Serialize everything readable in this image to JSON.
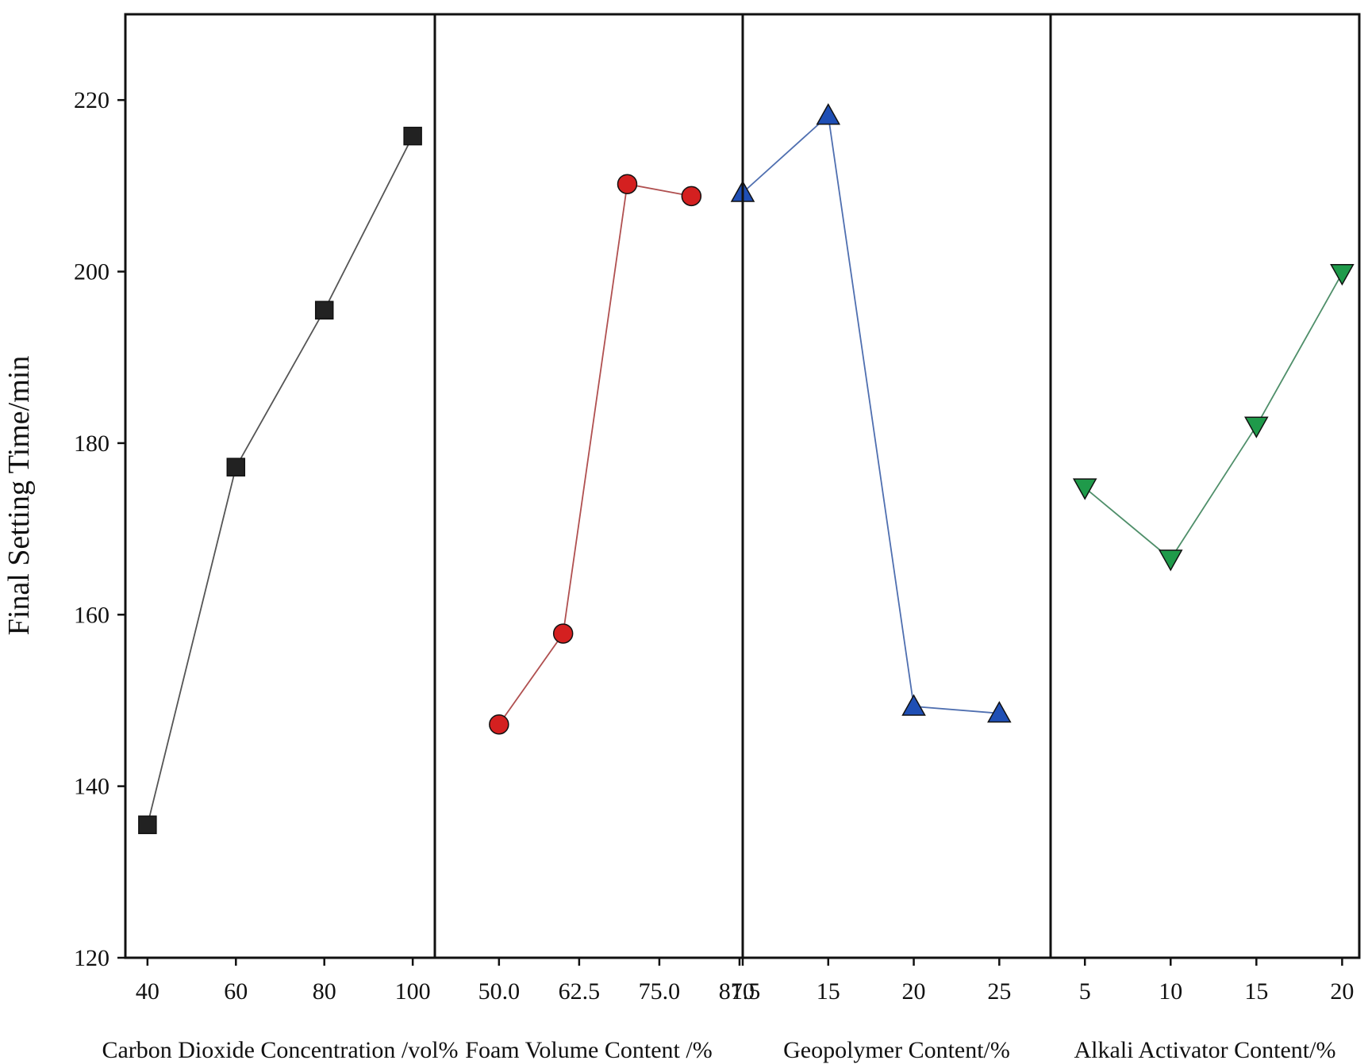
{
  "chart_data": {
    "type": "line",
    "ylabel": "Final Setting Time/min",
    "ylim": [
      120,
      230
    ],
    "yticks": [
      120,
      140,
      160,
      180,
      200,
      220
    ],
    "ytick_labels": [
      "120",
      "140",
      "160",
      "180",
      "200",
      "220"
    ],
    "grid": false,
    "panels": [
      {
        "xlabel": "Carbon Dioxide Concentration /vol%",
        "xlim": [
          35,
          105
        ],
        "xticks": [
          40,
          60,
          80,
          100
        ],
        "xtick_labels": [
          "40",
          "60",
          "80",
          "100"
        ],
        "color": "#222222",
        "line_color": "#555555",
        "marker": "square",
        "x": [
          40,
          60,
          80,
          100
        ],
        "values": [
          135.5,
          177.2,
          195.5,
          215.8
        ]
      },
      {
        "xlabel": "Foam Volume Content /%",
        "xlim": [
          40,
          88
        ],
        "xticks": [
          50.0,
          62.5,
          75.0,
          87.5
        ],
        "xtick_labels": [
          "50.0",
          "62.5",
          "75.0",
          "87.5"
        ],
        "color": "#d42020",
        "line_color": "#b05050",
        "marker": "circle",
        "x": [
          50,
          60,
          70,
          80
        ],
        "values": [
          147.2,
          157.8,
          210.2,
          208.8
        ]
      },
      {
        "xlabel": "Geopolymer Content/%",
        "xlim": [
          10,
          28
        ],
        "xticks": [
          10,
          15,
          20,
          25
        ],
        "xtick_labels": [
          "10",
          "15",
          "20",
          "25"
        ],
        "color": "#1f4fb5",
        "line_color": "#4f6fb0",
        "marker": "triangle-up",
        "x": [
          10,
          15,
          20,
          25
        ],
        "values": [
          209.2,
          218.2,
          149.3,
          148.5
        ]
      },
      {
        "xlabel": "Alkali Activator Content/%",
        "xlim": [
          3,
          21
        ],
        "xticks": [
          5,
          10,
          15,
          20
        ],
        "xtick_labels": [
          "5",
          "10",
          "15",
          "20"
        ],
        "color": "#1f9a4a",
        "line_color": "#4f8f6a",
        "marker": "triangle-down",
        "x": [
          5,
          10,
          15,
          20
        ],
        "values": [
          174.8,
          166.5,
          182.0,
          199.8
        ]
      }
    ]
  }
}
